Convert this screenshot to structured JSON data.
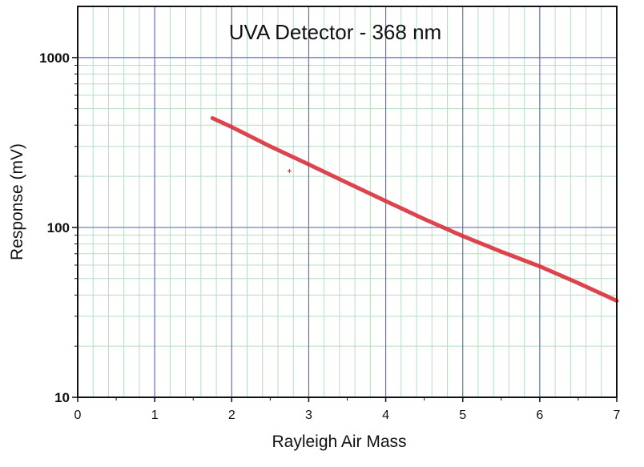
{
  "chart_data": {
    "type": "line",
    "title": "UVA Detector - 368 nm",
    "xlabel": "Rayleigh Air Mass",
    "ylabel": "Response (mV)",
    "xlim": [
      0,
      7
    ],
    "ylim": [
      10,
      2000
    ],
    "yscale": "log",
    "grid": true,
    "x_ticks": [
      "0",
      "1",
      "2",
      "3",
      "4",
      "5",
      "6",
      "7"
    ],
    "y_ticks": [
      "10",
      "100",
      "1000"
    ],
    "series": [
      {
        "color": "#d9303a",
        "x": [
          1.75,
          2.0,
          2.5,
          3.0,
          3.5,
          4.0,
          4.5,
          5.0,
          5.5,
          6.0,
          6.5,
          7.0
        ],
        "y": [
          440,
          390,
          300,
          235,
          183,
          143,
          112,
          89,
          72,
          59,
          47,
          37
        ]
      }
    ],
    "outliers": [
      {
        "color": "#d9303a",
        "x": [
          2.75
        ],
        "y": [
          215
        ]
      }
    ]
  }
}
